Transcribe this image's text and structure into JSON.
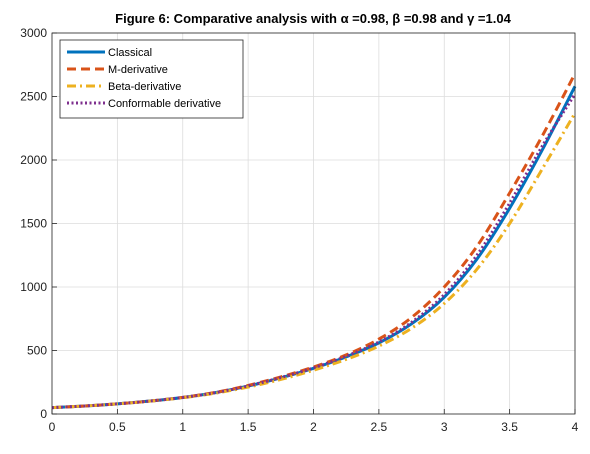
{
  "chart_data": {
    "type": "line",
    "title": "Figure 6: Comparative analysis with α =0.98, β =0.98 and γ =1.04",
    "xlabel": "",
    "ylabel": "",
    "xlim": [
      0,
      4
    ],
    "ylim": [
      0,
      3000
    ],
    "xticks": [
      "0",
      "0.5",
      "1",
      "1.5",
      "2",
      "2.5",
      "3",
      "3.5",
      "4"
    ],
    "yticks": [
      "0",
      "500",
      "1000",
      "1500",
      "2000",
      "2500",
      "3000"
    ],
    "grid": true,
    "legend_position": "top-left",
    "x": [
      0,
      0.25,
      0.5,
      0.75,
      1,
      1.25,
      1.5,
      1.75,
      2,
      2.25,
      2.5,
      2.75,
      3,
      3.25,
      3.5,
      3.75,
      4
    ],
    "series": [
      {
        "name": "Classical",
        "color": "#0072BD",
        "dash": "solid",
        "values": [
          50,
          63,
          80,
          102,
          130,
          168,
          220,
          285,
          360,
          450,
          560,
          710,
          920,
          1220,
          1620,
          2080,
          2580
        ]
      },
      {
        "name": "M-derivative",
        "color": "#D95319",
        "dash": "dashed",
        "values": [
          50,
          63,
          80,
          102,
          131,
          170,
          225,
          292,
          370,
          465,
          590,
          760,
          1000,
          1320,
          1740,
          2190,
          2680
        ]
      },
      {
        "name": "Beta-derivative",
        "color": "#EDB120",
        "dash": "dashdot",
        "values": [
          50,
          63,
          80,
          101,
          128,
          164,
          212,
          272,
          345,
          430,
          535,
          675,
          870,
          1140,
          1500,
          1930,
          2370
        ]
      },
      {
        "name": "Conformable derivative",
        "color": "#7E2F8E",
        "dash": "dotted",
        "values": [
          50,
          63,
          80,
          102,
          130,
          168,
          221,
          287,
          363,
          455,
          567,
          722,
          940,
          1250,
          1660,
          2110,
          2520
        ]
      }
    ]
  }
}
